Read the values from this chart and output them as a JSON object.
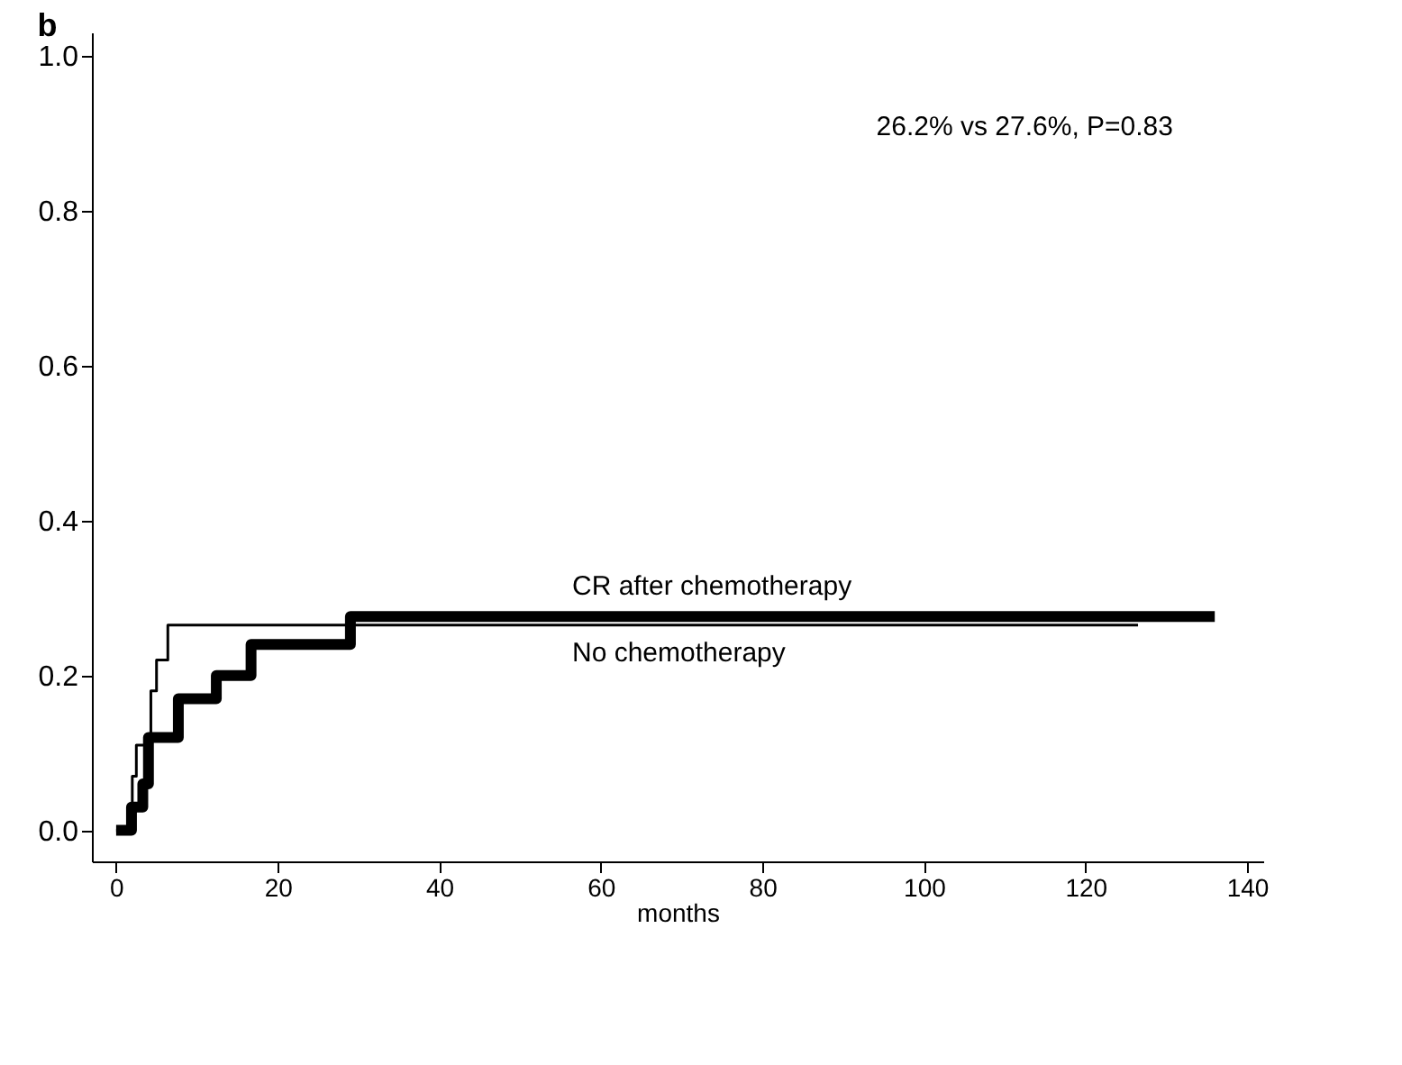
{
  "chart_data": {
    "type": "step",
    "title": "b",
    "xlabel": "months",
    "annotations": [
      "26.2% vs 27.6%, P=0.83"
    ],
    "xlim": [
      -3,
      142
    ],
    "ylim": [
      -0.04,
      1.03
    ],
    "xticks": [
      0,
      20,
      40,
      60,
      80,
      100,
      120,
      140
    ],
    "yticks": [
      {
        "value": 0,
        "label": "0.0"
      },
      {
        "value": 0.2,
        "label": "0.2"
      },
      {
        "value": 0.4,
        "label": "0.4"
      },
      {
        "value": 0.6,
        "label": "0.6"
      },
      {
        "value": 0.8,
        "label": "0.8"
      },
      {
        "value": 1,
        "label": "1.0"
      }
    ],
    "grid": false,
    "marker": "none",
    "line_style": "solid",
    "series": [
      {
        "name": "No chemotherapy",
        "color": "#000000",
        "x": [
          0,
          2,
          2.5,
          4.3,
          5,
          6.4,
          126.5
        ],
        "values": [
          0,
          0.07,
          0.11,
          0.18,
          0.22,
          0.265,
          0.265
        ]
      },
      {
        "name": "CR after chemotherapy",
        "color": "#000000",
        "x": [
          0,
          1.9,
          3.3,
          4,
          7.7,
          12.4,
          16.7,
          29,
          136
        ],
        "values": [
          0,
          0.03,
          0.06,
          0.12,
          0.17,
          0.2,
          0.24,
          0.276,
          0.276
        ]
      }
    ]
  }
}
